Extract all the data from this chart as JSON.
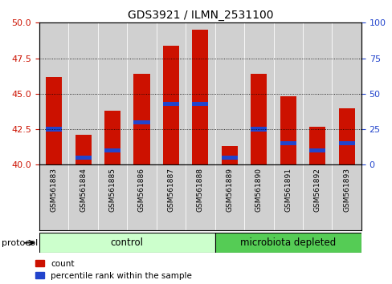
{
  "title": "GDS3921 / ILMN_2531100",
  "samples": [
    "GSM561883",
    "GSM561884",
    "GSM561885",
    "GSM561886",
    "GSM561887",
    "GSM561888",
    "GSM561889",
    "GSM561890",
    "GSM561891",
    "GSM561892",
    "GSM561893"
  ],
  "count_values": [
    46.2,
    42.1,
    43.8,
    46.4,
    48.4,
    49.5,
    41.3,
    46.4,
    44.8,
    42.7,
    44.0
  ],
  "percentile_values": [
    25,
    5,
    10,
    30,
    43,
    43,
    5,
    25,
    15,
    10,
    15
  ],
  "ymin": 40,
  "ymax": 50,
  "y_ticks": [
    40,
    42.5,
    45,
    47.5,
    50
  ],
  "y2min": 0,
  "y2max": 100,
  "y2_ticks": [
    0,
    25,
    50,
    75,
    100
  ],
  "bar_color": "#cc1100",
  "blue_color": "#2244cc",
  "control_color": "#ccffcc",
  "microbiota_color": "#55cc55",
  "tick_label_color_left": "#cc1100",
  "tick_label_color_right": "#2244cc",
  "control_samples": 6,
  "microbiota_samples": 5,
  "control_label": "control",
  "microbiota_label": "microbiota depleted",
  "protocol_label": "protocol",
  "legend_count": "count",
  "legend_percentile": "percentile rank within the sample",
  "background_color": "#ffffff",
  "bar_width": 0.55,
  "gray_box_color": "#d0d0d0",
  "blue_bar_height": 0.3
}
